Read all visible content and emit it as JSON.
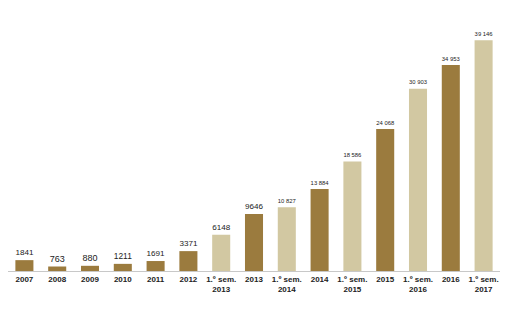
{
  "chart_data": {
    "type": "bar",
    "categories": [
      "2007",
      "2008",
      "2009",
      "2010",
      "2011",
      "2012",
      "1.º sem. 2013",
      "2013",
      "1.º sem. 2014",
      "2014",
      "1.º sem. 2015",
      "2015",
      "1.º sem. 2016",
      "2016",
      "1.º sem. 2017"
    ],
    "values": [
      1841,
      763,
      880,
      1211,
      1691,
      3371,
      6148,
      9646,
      10827,
      13884,
      18586,
      24068,
      30903,
      34953,
      39146
    ],
    "value_labels": [
      "1841",
      "763",
      "880",
      "1211",
      "1691",
      "3371",
      "6148",
      "9646",
      "10 827",
      "13 884",
      "18 586",
      "24 068",
      "30 903",
      "34 953",
      "39 146"
    ],
    "colors": [
      "#9b7b3e",
      "#9b7b3e",
      "#9b7b3e",
      "#9b7b3e",
      "#9b7b3e",
      "#9b7b3e",
      "#d2c8a2",
      "#9b7b3e",
      "#d2c8a2",
      "#9b7b3e",
      "#d2c8a2",
      "#9b7b3e",
      "#d2c8a2",
      "#9b7b3e",
      "#d2c8a2"
    ],
    "data_labels": true,
    "tick_labels": "x",
    "grid": false
  }
}
